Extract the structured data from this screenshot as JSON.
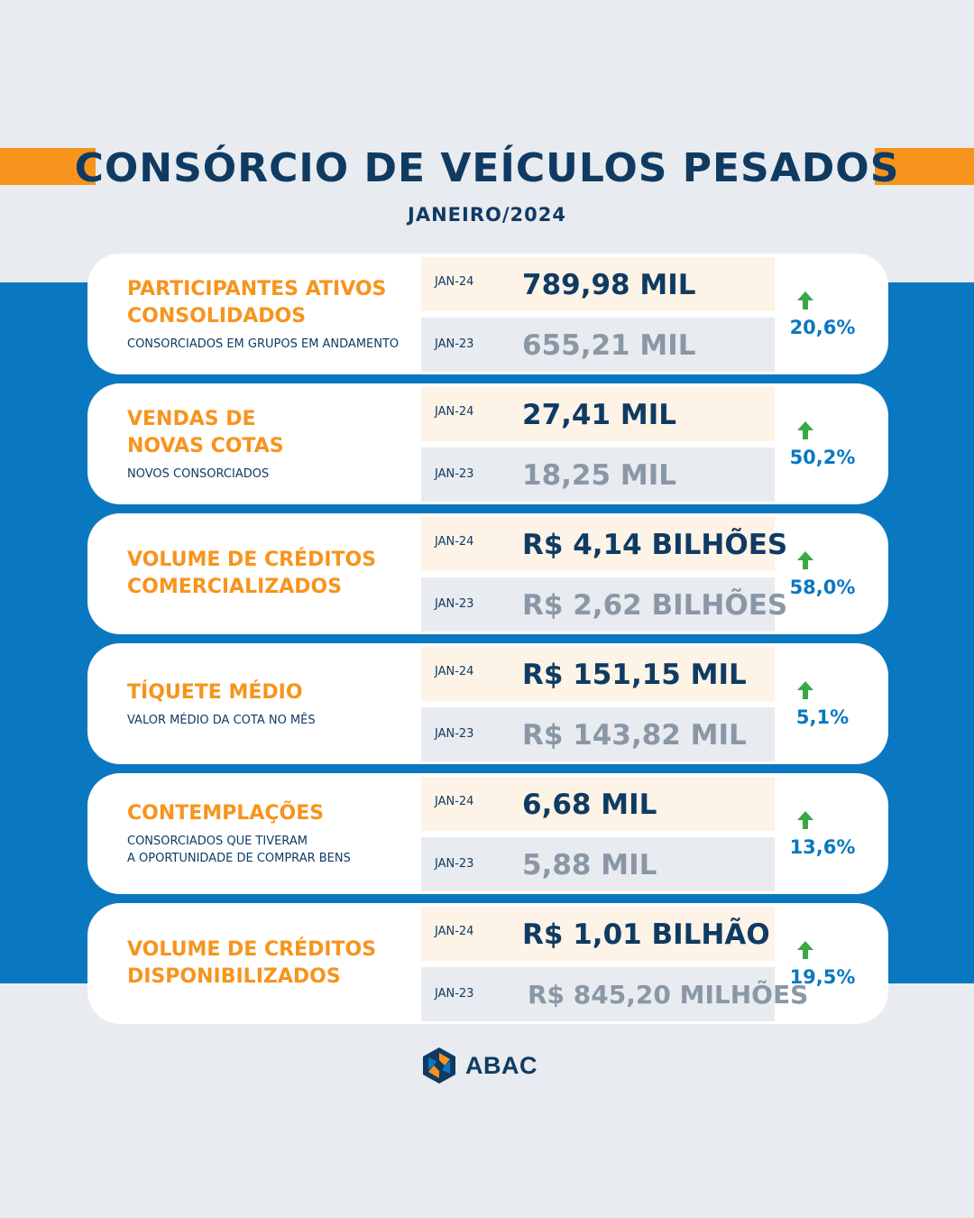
{
  "header": {
    "title": "CONSÓRCIO DE VEÍCULOS PESADOS",
    "subtitle": "JANEIRO/2024"
  },
  "colors": {
    "accent_orange": "#f7941d",
    "navy": "#0f3b63",
    "blue": "#0a78c1",
    "arrow_green": "#3aa843",
    "muted_value": "#8a97a6"
  },
  "cards": [
    {
      "title": "PARTICIPANTES ATIVOS\nCONSOLIDADOS",
      "description": "CONSORCIADOS EM GRUPOS EM ANDAMENTO",
      "current_period": "JAN-24",
      "current_value": "789,98 MIL",
      "previous_period": "JAN-23",
      "previous_value": "655,21 MIL",
      "change": "20,6%",
      "trend_icon": "arrow-up-icon"
    },
    {
      "title": "VENDAS DE\nNOVAS COTAS",
      "description": "NOVOS CONSORCIADOS",
      "current_period": "JAN-24",
      "current_value": "27,41 MIL",
      "previous_period": "JAN-23",
      "previous_value": "18,25 MIL",
      "change": "50,2%",
      "trend_icon": "arrow-up-icon"
    },
    {
      "title": "VOLUME DE CRÉDITOS\nCOMERCIALIZADOS",
      "description": "",
      "current_period": "JAN-24",
      "current_value": "R$ 4,14 BILHÕES",
      "previous_period": "JAN-23",
      "previous_value": "R$ 2,62 BILHÕES",
      "change": "58,0%",
      "trend_icon": "arrow-up-icon"
    },
    {
      "title": "TÍQUETE MÉDIO",
      "description": "VALOR MÉDIO DA COTA NO MÊS",
      "current_period": "JAN-24",
      "current_value": "R$ 151,15 MIL",
      "previous_period": "JAN-23",
      "previous_value": "R$ 143,82 MIL",
      "change": "5,1%",
      "trend_icon": "arrow-up-icon"
    },
    {
      "title": "CONTEMPLAÇÕES",
      "description": "CONSORCIADOS QUE TIVERAM\nA OPORTUNIDADE DE COMPRAR BENS",
      "current_period": "JAN-24",
      "current_value": "6,68 MIL",
      "previous_period": "JAN-23",
      "previous_value": "5,88 MIL",
      "change": "13,6%",
      "trend_icon": "arrow-up-icon"
    },
    {
      "title": "VOLUME DE CRÉDITOS\nDISPONIBILIZADOS",
      "description": "",
      "current_period": "JAN-24",
      "current_value": "R$ 1,01 BILHÃO",
      "previous_period": "JAN-23",
      "previous_value": "R$ 845,20 MILHÕES",
      "change": "19,5%",
      "trend_icon": "arrow-up-icon"
    }
  ],
  "footer": {
    "logo_text": "ABAC",
    "logo_icon": "abac-logo-icon"
  }
}
